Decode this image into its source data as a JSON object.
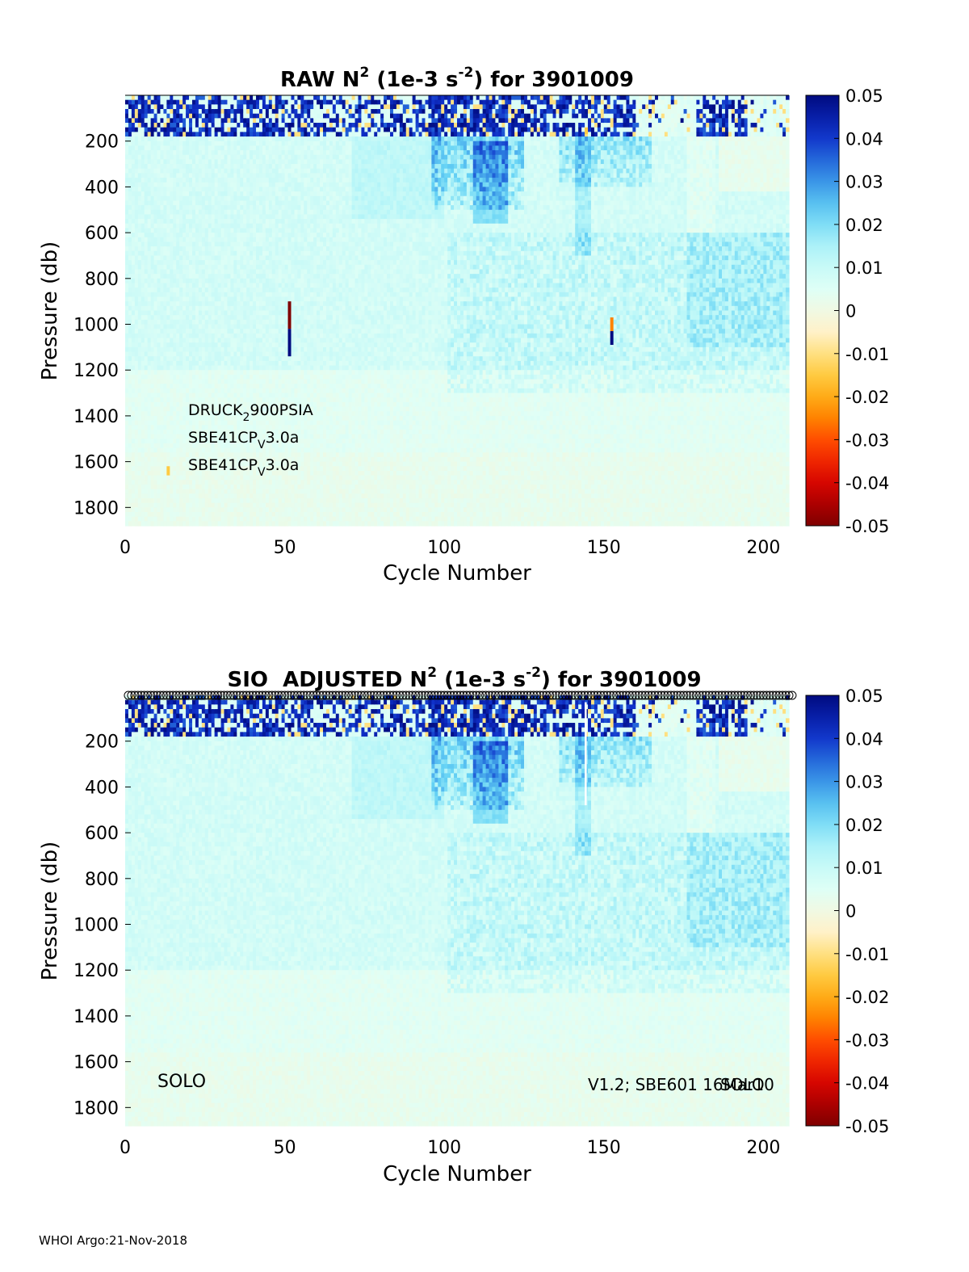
{
  "footer": "WHOI Argo:21-Nov-2018",
  "colormap": {
    "stops": [
      "#7f0000",
      "#d10000",
      "#ff3a00",
      "#ff9a00",
      "#ffd34d",
      "#fff3cf",
      "#e0fff6",
      "#b8f6f8",
      "#66d3f5",
      "#2f86e3",
      "#0f2fc8",
      "#000b80"
    ]
  },
  "chart_data": [
    {
      "type": "heatmap",
      "id": "raw",
      "title": "RAW N² (1e-3 s⁻²) for 3901009",
      "title_parts": {
        "a": "RAW N",
        "sup1": "2",
        "b": " (1e-3 s",
        "sup2": "-2",
        "c": ") for 3901009"
      },
      "xlabel": "Cycle Number",
      "ylabel": "Pressure (db)",
      "xlim": [
        0,
        208
      ],
      "ylim": [
        1880,
        0
      ],
      "xticks": [
        0,
        50,
        100,
        150,
        200
      ],
      "yticks": [
        200,
        400,
        600,
        800,
        1000,
        1200,
        1400,
        1600,
        1800
      ],
      "colorbar": {
        "clim": [
          -0.05,
          0.05
        ],
        "ticks": [
          "0.05",
          "0.04",
          "0.03",
          "0.02",
          "0.01",
          "0",
          "-0.01",
          "-0.02",
          "-0.03",
          "-0.04",
          "-0.05"
        ]
      },
      "annotations": [
        {
          "base": "DRUCK",
          "sub": "2",
          "rest": "900PSIA"
        },
        {
          "base": "SBE41CP",
          "sub": "V",
          "rest": "3.0a"
        },
        {
          "base": "SBE41CP",
          "sub": "V",
          "rest": "3.0a"
        }
      ],
      "spikes": [
        {
          "cycle": 51,
          "p_from": 900,
          "p_to": 1020,
          "value": -0.05
        },
        {
          "cycle": 51,
          "p_from": 1020,
          "p_to": 1140,
          "value": 0.05
        },
        {
          "cycle": 152,
          "p_from": 970,
          "p_to": 1030,
          "value": -0.025
        },
        {
          "cycle": 152,
          "p_from": 1030,
          "p_to": 1090,
          "value": 0.05
        },
        {
          "cycle": 144,
          "p_from": 140,
          "p_to": 170,
          "value": -0.015
        },
        {
          "cycle": 13,
          "p_from": 1620,
          "p_to": 1660,
          "value": -0.015
        }
      ],
      "gaps": []
    },
    {
      "type": "heatmap",
      "id": "adjusted",
      "title": "SIO ADJUSTED N² (1e-3 s⁻²) for 3901009",
      "title_parts": {
        "a": "SIO  ADJUSTED N",
        "sup1": "2",
        "b": " (1e-3 s",
        "sup2": "-2",
        "c": ") for 3901009"
      },
      "xlabel": "Cycle Number",
      "ylabel": "Pressure (db)",
      "xlim": [
        0,
        208
      ],
      "ylim": [
        1880,
        0
      ],
      "xticks": [
        0,
        50,
        100,
        150,
        200
      ],
      "yticks": [
        200,
        400,
        600,
        800,
        1000,
        1200,
        1400,
        1600,
        1800
      ],
      "colorbar": {
        "clim": [
          -0.05,
          0.05
        ],
        "ticks": [
          "0.05",
          "0.04",
          "0.03",
          "0.02",
          "0.01",
          "0",
          "-0.01",
          "-0.02",
          "-0.03",
          "-0.04",
          "-0.05"
        ]
      },
      "labels": {
        "left": "SOLO",
        "right": "V1.2; SBE601 16Mar10",
        "right_overlap": "SOLO"
      },
      "qc_markers": {
        "cycle_from": 1,
        "cycle_to": 209,
        "marker": "circle"
      },
      "spikes": [],
      "gaps": [
        {
          "cycle": 144,
          "p_from": 30,
          "p_to": 480
        }
      ]
    }
  ]
}
